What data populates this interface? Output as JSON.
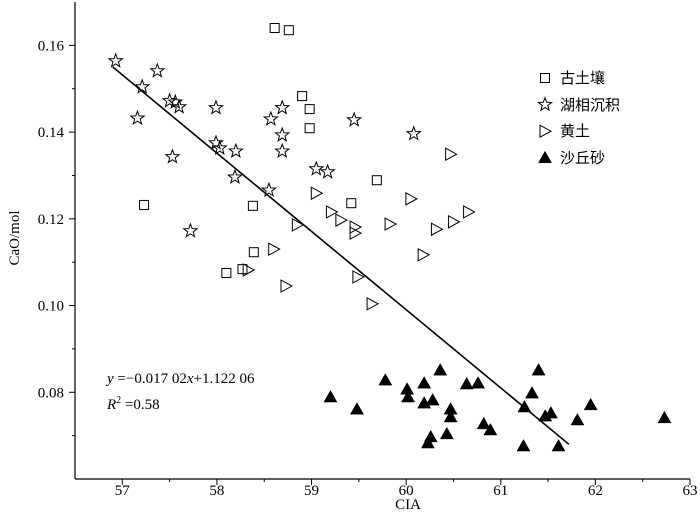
{
  "chart_data": {
    "type": "scatter",
    "xlabel": "CIA",
    "ylabel": "CaO/mol",
    "xlim": [
      56.5,
      63
    ],
    "ylim": [
      0.06,
      0.17
    ],
    "xticks": [
      "57",
      "58",
      "59",
      "60",
      "61",
      "62",
      "63"
    ],
    "yticks": [
      "0.08",
      "0.10",
      "0.12",
      "0.14",
      "0.16"
    ],
    "grid": false,
    "legend_position": "top-right",
    "series": [
      {
        "name": "古土壤",
        "marker": "open-square",
        "points": [
          [
            58.61,
            0.164
          ],
          [
            58.76,
            0.1635
          ],
          [
            58.9,
            0.1483
          ],
          [
            58.98,
            0.1453
          ],
          [
            58.98,
            0.1409
          ],
          [
            59.69,
            0.1289
          ],
          [
            59.42,
            0.1236
          ],
          [
            57.23,
            0.1232
          ],
          [
            58.38,
            0.123
          ],
          [
            58.39,
            0.1123
          ],
          [
            58.1,
            0.1075
          ],
          [
            58.27,
            0.1084
          ]
        ]
      },
      {
        "name": "湖相沉积",
        "marker": "open-star",
        "points": [
          [
            56.93,
            0.1564
          ],
          [
            57.37,
            0.1541
          ],
          [
            57.21,
            0.1504
          ],
          [
            57.16,
            0.1432
          ],
          [
            57.5,
            0.1472
          ],
          [
            57.56,
            0.1469
          ],
          [
            57.6,
            0.1458
          ],
          [
            57.99,
            0.1456
          ],
          [
            57.99,
            0.1375
          ],
          [
            58.03,
            0.1363
          ],
          [
            58.2,
            0.1356
          ],
          [
            57.53,
            0.1343
          ],
          [
            58.19,
            0.1296
          ],
          [
            57.72,
            0.1172
          ],
          [
            58.57,
            0.143
          ],
          [
            58.69,
            0.1456
          ],
          [
            58.69,
            0.1393
          ],
          [
            58.69,
            0.1356
          ],
          [
            58.55,
            0.1266
          ],
          [
            59.05,
            0.1315
          ],
          [
            59.17,
            0.1308
          ],
          [
            59.45,
            0.1428
          ],
          [
            60.08,
            0.1396
          ]
        ]
      },
      {
        "name": "黄土",
        "marker": "open-right-triangle",
        "points": [
          [
            60.47,
            0.1349
          ],
          [
            59.05,
            0.1259
          ],
          [
            60.05,
            0.1246
          ],
          [
            60.66,
            0.1216
          ],
          [
            60.5,
            0.1193
          ],
          [
            60.32,
            0.1176
          ],
          [
            59.83,
            0.1188
          ],
          [
            59.21,
            0.1216
          ],
          [
            59.31,
            0.1197
          ],
          [
            59.46,
            0.1181
          ],
          [
            59.46,
            0.1167
          ],
          [
            58.85,
            0.1186
          ],
          [
            58.6,
            0.113
          ],
          [
            60.18,
            0.1117
          ],
          [
            59.49,
            0.1066
          ],
          [
            59.64,
            0.1004
          ],
          [
            58.33,
            0.1082
          ],
          [
            58.73,
            0.1045
          ]
        ]
      },
      {
        "name": "沙丘砂",
        "marker": "filled-up-triangle",
        "points": [
          [
            59.2,
            0.0789
          ],
          [
            59.48,
            0.0761
          ],
          [
            59.78,
            0.0828
          ],
          [
            60.01,
            0.0807
          ],
          [
            60.02,
            0.0789
          ],
          [
            60.19,
            0.0821
          ],
          [
            60.36,
            0.0851
          ],
          [
            60.19,
            0.0775
          ],
          [
            60.28,
            0.0782
          ],
          [
            60.23,
            0.0683
          ],
          [
            60.26,
            0.0697
          ],
          [
            60.43,
            0.0704
          ],
          [
            60.47,
            0.0761
          ],
          [
            60.47,
            0.0743
          ],
          [
            60.64,
            0.0819
          ],
          [
            60.76,
            0.0821
          ],
          [
            60.82,
            0.0727
          ],
          [
            60.89,
            0.0713
          ],
          [
            61.25,
            0.0766
          ],
          [
            61.24,
            0.0676
          ],
          [
            61.33,
            0.0798
          ],
          [
            61.4,
            0.0851
          ],
          [
            61.47,
            0.0745
          ],
          [
            61.53,
            0.0752
          ],
          [
            61.61,
            0.0676
          ],
          [
            61.81,
            0.0736
          ],
          [
            61.95,
            0.0771
          ],
          [
            62.73,
            0.0741
          ]
        ]
      }
    ],
    "trendline": {
      "x": [
        56.9,
        61.72
      ],
      "y": [
        0.155,
        0.068
      ]
    },
    "annotations": {
      "equation": {
        "lhs": "y",
        "slope": " =−0.017 02",
        "variable": "x",
        "intercept": "+1.122 06"
      },
      "r_squared": {
        "symbol": "R",
        "exponent": "2",
        "value": " =0.58"
      }
    }
  }
}
